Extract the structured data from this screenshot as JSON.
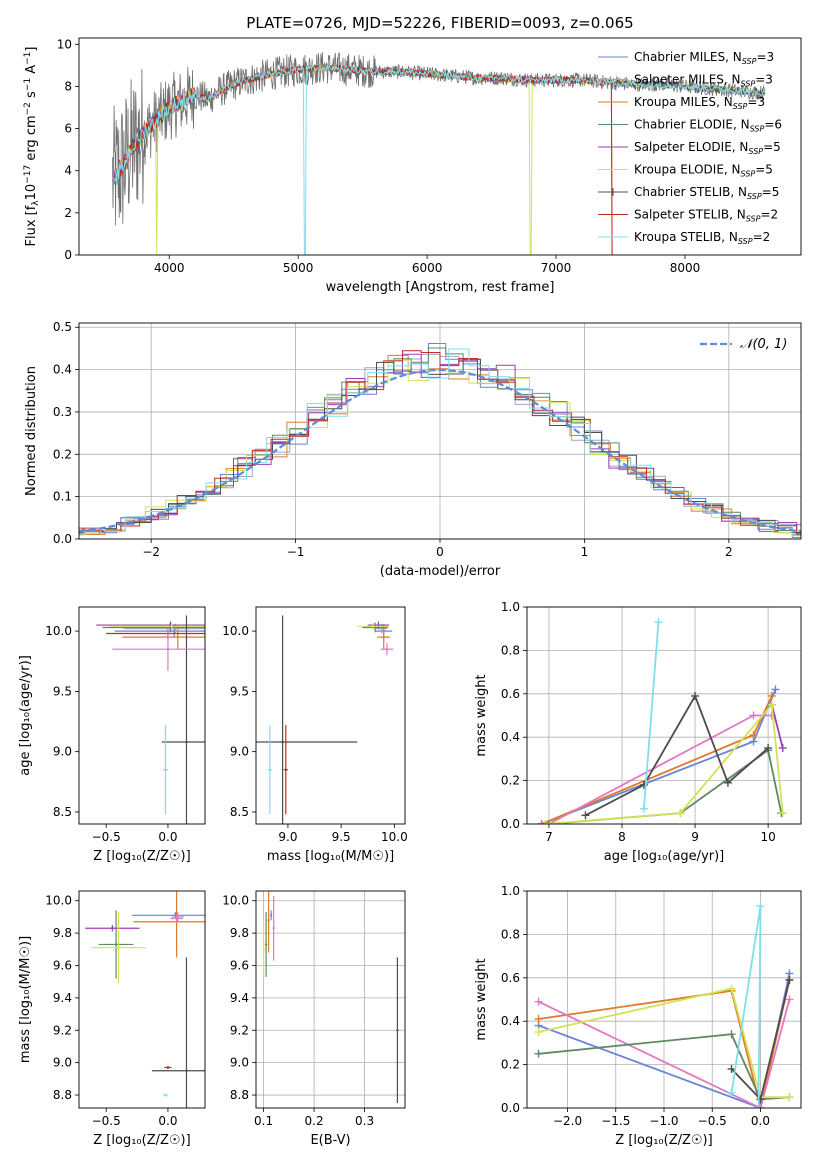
{
  "chart_data": [
    {
      "panel": "spectrum",
      "type": "line",
      "title": "PLATE=0726, MJD=52226, FIBERID=0093, z=0.065",
      "xlabel": "wavelength [Angstrom, rest frame]",
      "ylabel_prefix": "Flux [f",
      "ylabel_unit": "10",
      "ylabel_exp": "−17",
      "ylabel_suffix": " erg cm",
      "ylabel_exp2": "−2",
      "ylabel_s": " s",
      "ylabel_exp3": "−1",
      "ylabel_end": " A",
      "ylabel_exp4": "−1",
      "ylabel_close": "]",
      "xlim": [
        3300,
        8900
      ],
      "ylim": [
        0,
        10.3
      ],
      "xticks": [
        4000,
        5000,
        6000,
        7000,
        8000
      ],
      "yticks": [
        0,
        2,
        4,
        6,
        8,
        10
      ],
      "grid": false,
      "legend_position": "right",
      "series": [
        {
          "name": "Chabrier MILES",
          "nssp": "3",
          "color": "#6a84d6"
        },
        {
          "name": "Salpeter MILES",
          "nssp": "3",
          "color": "#9fa7c9"
        },
        {
          "name": "Kroupa MILES",
          "nssp": "3",
          "color": "#e07b2a"
        },
        {
          "name": "Chabrier ELODIE",
          "nssp": "6",
          "color": "#5f8a62"
        },
        {
          "name": "Salpeter ELODIE",
          "nssp": "5",
          "color": "#9b3fb5"
        },
        {
          "name": "Kroupa ELODIE",
          "nssp": "5",
          "color": "#d4e157"
        },
        {
          "name": "Chabrier STELIB",
          "nssp": "5",
          "color": "#4d4d4d"
        },
        {
          "name": "Salpeter STELIB",
          "nssp": "2",
          "color": "#c62828"
        },
        {
          "name": "Kroupa STELIB",
          "nssp": "2",
          "color": "#80deea"
        }
      ],
      "continuum": {
        "x": [
          3550,
          3600,
          3650,
          3700,
          3800,
          3900,
          4000,
          4100,
          4200,
          4300,
          4400,
          4500,
          4600,
          4800,
          5000,
          5200,
          5400,
          5600,
          5800,
          6000,
          6200,
          6400,
          6600,
          6800,
          7000,
          7200,
          7400,
          7600,
          7800,
          8000,
          8200,
          8400,
          8600
        ],
        "y": [
          3.5,
          3.8,
          4.3,
          5.0,
          5.8,
          6.4,
          7.0,
          7.3,
          7.6,
          7.4,
          7.8,
          8.1,
          8.3,
          8.6,
          8.8,
          8.9,
          8.8,
          8.7,
          8.7,
          8.6,
          8.5,
          8.4,
          8.4,
          8.3,
          8.3,
          8.3,
          8.2,
          8.1,
          8.1,
          8.0,
          7.9,
          7.8,
          7.7
        ]
      }
    },
    {
      "panel": "residuals",
      "type": "histogram",
      "xlabel": "(data-model)/error",
      "ylabel": "Normed distribution",
      "xlim": [
        -2.5,
        2.5
      ],
      "ylim": [
        0,
        0.51
      ],
      "xticks": [
        -2,
        -1,
        0,
        1,
        2
      ],
      "yticks": [
        0.0,
        0.1,
        0.2,
        0.3,
        0.4,
        0.5
      ],
      "grid": true,
      "legend_label": "𝒩(0, 1)",
      "legend_position": "top-right",
      "gaussian": {
        "mean": 0,
        "sigma": 1,
        "color": "#5b8ddb"
      }
    },
    {
      "panel": "age_vs_Z",
      "type": "scatter",
      "xlabel": "Z [log₁₀(Z/Z☉)]",
      "ylabel": "age  [log₁₀(age/yr)]",
      "xlim": [
        -0.72,
        0.3
      ],
      "ylim": [
        8.4,
        10.2
      ],
      "xticks": [
        -0.5,
        0.0
      ],
      "yticks": [
        8.5,
        9.0,
        9.5,
        10.0
      ],
      "points": [
        {
          "x": 0.05,
          "y": 10.0,
          "xerr": 0.48,
          "yerr": 0.05,
          "color": "#6a84d6"
        },
        {
          "x": 0.06,
          "y": 10.02,
          "xerr": 0.42,
          "yerr": 0.04,
          "color": "#9fa7c9"
        },
        {
          "x": 0.08,
          "y": 9.95,
          "xerr": 0.45,
          "yerr": 0.1,
          "color": "#e07b2a"
        },
        {
          "x": 0.02,
          "y": 10.03,
          "xerr": 0.55,
          "yerr": 0.04,
          "color": "#5f8a62"
        },
        {
          "x": 0.02,
          "y": 10.05,
          "xerr": 0.6,
          "yerr": 0.03,
          "color": "#9b3fb5"
        },
        {
          "x": 0.03,
          "y": 10.04,
          "xerr": 0.5,
          "yerr": 0.03,
          "color": "#d4e157"
        },
        {
          "x": 0.15,
          "y": 9.08,
          "xerr": 0.2,
          "yerr": 1.05,
          "color": "#4d4d4d"
        },
        {
          "x": 0.0,
          "y": 9.98,
          "xerr": 0.5,
          "yerr": 0.05,
          "color": "#c62828"
        },
        {
          "x": -0.02,
          "y": 8.85,
          "xerr": 0.02,
          "yerr": 0.37,
          "color": "#80deea"
        },
        {
          "x": 0.0,
          "y": 9.85,
          "xerr": 0.45,
          "yerr": 0.18,
          "color": "#e377c2"
        }
      ]
    },
    {
      "panel": "age_vs_mass",
      "type": "scatter",
      "xlabel": "mass [log₁₀(M/M☉)]",
      "ylabel": "",
      "xlim": [
        8.7,
        10.1
      ],
      "ylim": [
        8.4,
        10.2
      ],
      "xticks": [
        9.0,
        9.5,
        10.0
      ],
      "yticks": [
        8.5,
        9.0,
        9.5,
        10.0
      ],
      "points": [
        {
          "x": 9.9,
          "y": 10.0,
          "xerr": 0.08,
          "yerr": 0.06,
          "color": "#6a84d6"
        },
        {
          "x": 9.88,
          "y": 10.02,
          "xerr": 0.05,
          "yerr": 0.04,
          "color": "#9fa7c9"
        },
        {
          "x": 9.9,
          "y": 9.95,
          "xerr": 0.06,
          "yerr": 0.1,
          "color": "#e07b2a"
        },
        {
          "x": 9.82,
          "y": 10.03,
          "xerr": 0.12,
          "yerr": 0.04,
          "color": "#5f8a62"
        },
        {
          "x": 9.85,
          "y": 10.05,
          "xerr": 0.1,
          "yerr": 0.03,
          "color": "#9b3fb5"
        },
        {
          "x": 9.8,
          "y": 10.04,
          "xerr": 0.15,
          "yerr": 0.03,
          "color": "#d4e157"
        },
        {
          "x": 8.95,
          "y": 9.08,
          "xerr": 0.7,
          "yerr": 1.05,
          "color": "#4d4d4d"
        },
        {
          "x": 8.98,
          "y": 8.85,
          "xerr": 0.02,
          "yerr": 0.37,
          "color": "#c62828"
        },
        {
          "x": 8.83,
          "y": 8.85,
          "xerr": 0.02,
          "yerr": 0.37,
          "color": "#80deea"
        },
        {
          "x": 9.93,
          "y": 9.85,
          "xerr": 0.06,
          "yerr": 0.05,
          "color": "#e377c2"
        }
      ]
    },
    {
      "panel": "weight_vs_age",
      "type": "line",
      "xlabel": "age  [log₁₀(age/yr)]",
      "ylabel": "mass weight",
      "xlim": [
        6.7,
        10.45
      ],
      "ylim": [
        0,
        1.0
      ],
      "xticks": [
        7,
        8,
        9,
        10
      ],
      "yticks": [
        0.0,
        0.2,
        0.4,
        0.6,
        0.8,
        1.0
      ],
      "grid": true,
      "series": [
        {
          "color": "#6a84d6",
          "x": [
            6.9,
            9.8,
            10.1
          ],
          "y": [
            0.0,
            0.38,
            0.62
          ]
        },
        {
          "color": "#e07b2a",
          "x": [
            6.9,
            9.8,
            10.05
          ],
          "y": [
            0.0,
            0.41,
            0.59
          ]
        },
        {
          "color": "#e377c2",
          "x": [
            7.0,
            9.8,
            10.05
          ],
          "y": [
            0.0,
            0.5,
            0.5
          ]
        },
        {
          "color": "#5f8a62",
          "x": [
            7.0,
            8.8,
            10.0,
            10.18
          ],
          "y": [
            0.0,
            0.05,
            0.34,
            0.05
          ]
        },
        {
          "color": "#9b3fb5",
          "x": [
            10.05,
            10.2
          ],
          "y": [
            0.55,
            0.35
          ]
        },
        {
          "color": "#d4e157",
          "x": [
            6.95,
            8.8,
            10.05,
            10.2
          ],
          "y": [
            0.0,
            0.05,
            0.55,
            0.05
          ]
        },
        {
          "color": "#4d4d4d",
          "x": [
            7.5,
            8.3,
            9.0,
            9.45,
            10.0
          ],
          "y": [
            0.04,
            0.18,
            0.59,
            0.19,
            0.35
          ]
        },
        {
          "color": "#80deea",
          "x": [
            8.3,
            8.5
          ],
          "y": [
            0.07,
            0.93
          ]
        }
      ]
    },
    {
      "panel": "mass_vs_Z",
      "type": "scatter",
      "xlabel": "Z [log₁₀(Z/Z☉)]",
      "ylabel": "mass [log₁₀(M/M☉)]",
      "xlim": [
        -0.72,
        0.3
      ],
      "ylim": [
        8.72,
        10.06
      ],
      "xticks": [
        -0.5,
        0.0
      ],
      "yticks": [
        8.8,
        9.0,
        9.2,
        9.4,
        9.6,
        9.8,
        10.0
      ],
      "points": [
        {
          "x": 0.06,
          "y": 9.91,
          "xerr": 0.35,
          "yerr": 0.02,
          "color": "#6a84d6"
        },
        {
          "x": 0.08,
          "y": 9.9,
          "xerr": 0.05,
          "yerr": 0.03,
          "color": "#9fa7c9"
        },
        {
          "x": 0.07,
          "y": 9.87,
          "xerr": 0.35,
          "yerr": 0.22,
          "color": "#e07b2a"
        },
        {
          "x": -0.42,
          "y": 9.73,
          "xerr": 0.14,
          "yerr": 0.21,
          "color": "#5f8a62"
        },
        {
          "x": -0.45,
          "y": 9.83,
          "xerr": 0.22,
          "yerr": 0.02,
          "color": "#9b3fb5"
        },
        {
          "x": -0.4,
          "y": 9.71,
          "xerr": 0.22,
          "yerr": 0.22,
          "color": "#d4e157"
        },
        {
          "x": 0.15,
          "y": 8.95,
          "xerr": 0.28,
          "yerr": 0.7,
          "color": "#4d4d4d"
        },
        {
          "x": 0.0,
          "y": 8.97,
          "xerr": 0.03,
          "yerr": 0.01,
          "color": "#c62828"
        },
        {
          "x": -0.02,
          "y": 8.8,
          "xerr": 0.02,
          "yerr": 0.01,
          "color": "#80deea"
        },
        {
          "x": 0.07,
          "y": 9.89,
          "xerr": 0.05,
          "yerr": 0.02,
          "color": "#e377c2"
        }
      ]
    },
    {
      "panel": "mass_vs_EBV",
      "type": "scatter",
      "xlabel": "E(B-V)",
      "ylabel": "",
      "xlim": [
        0.085,
        0.38
      ],
      "ylim": [
        8.72,
        10.06
      ],
      "xticks": [
        0.1,
        0.2,
        0.3
      ],
      "yticks": [
        8.8,
        9.0,
        9.2,
        9.4,
        9.6,
        9.8,
        10.0
      ],
      "grid": true,
      "points": [
        {
          "x": 0.115,
          "y": 9.91,
          "yerr": 0.03,
          "color": "#6a84d6"
        },
        {
          "x": 0.11,
          "y": 9.88,
          "yerr": 0.2,
          "color": "#e07b2a"
        },
        {
          "x": 0.105,
          "y": 9.73,
          "yerr": 0.2,
          "color": "#5f8a62"
        },
        {
          "x": 0.1,
          "y": 9.7,
          "yerr": 0.18,
          "color": "#d4e157"
        },
        {
          "x": 0.12,
          "y": 9.83,
          "yerr": 0.2,
          "color": "#e377c2"
        },
        {
          "x": 0.365,
          "y": 9.2,
          "yerr": 0.45,
          "color": "#4d4d4d"
        }
      ]
    },
    {
      "panel": "weight_vs_Z",
      "type": "line",
      "xlabel": "Z [log₁₀(Z/Z☉)]",
      "ylabel": "mass weight",
      "xlim": [
        -2.42,
        0.42
      ],
      "ylim": [
        0,
        1.0
      ],
      "xticks": [
        -2.0,
        -1.5,
        -1.0,
        -0.5,
        0.0
      ],
      "yticks": [
        0.0,
        0.2,
        0.4,
        0.6,
        0.8,
        1.0
      ],
      "grid": true,
      "series": [
        {
          "color": "#6a84d6",
          "x": [
            -2.3,
            0.0,
            0.3
          ],
          "y": [
            0.38,
            0.0,
            0.62
          ]
        },
        {
          "color": "#e07b2a",
          "x": [
            -2.3,
            -0.3,
            0.0,
            0.3
          ],
          "y": [
            0.41,
            0.54,
            0.0,
            0.59
          ]
        },
        {
          "color": "#e377c2",
          "x": [
            -2.3,
            0.0,
            0.3
          ],
          "y": [
            0.49,
            0.0,
            0.5
          ]
        },
        {
          "color": "#5f8a62",
          "x": [
            -2.3,
            -0.3,
            0.0,
            0.3
          ],
          "y": [
            0.25,
            0.34,
            0.04,
            0.05
          ]
        },
        {
          "color": "#d4e157",
          "x": [
            -2.3,
            -0.3,
            0.0,
            0.3
          ],
          "y": [
            0.35,
            0.55,
            0.05,
            0.05
          ]
        },
        {
          "color": "#4d4d4d",
          "x": [
            -0.3,
            0.0,
            0.3
          ],
          "y": [
            0.18,
            0.04,
            0.59
          ]
        },
        {
          "color": "#80deea",
          "x": [
            -0.3,
            0.0,
            -0.02
          ],
          "y": [
            0.07,
            0.93,
            0.0
          ]
        }
      ]
    }
  ]
}
